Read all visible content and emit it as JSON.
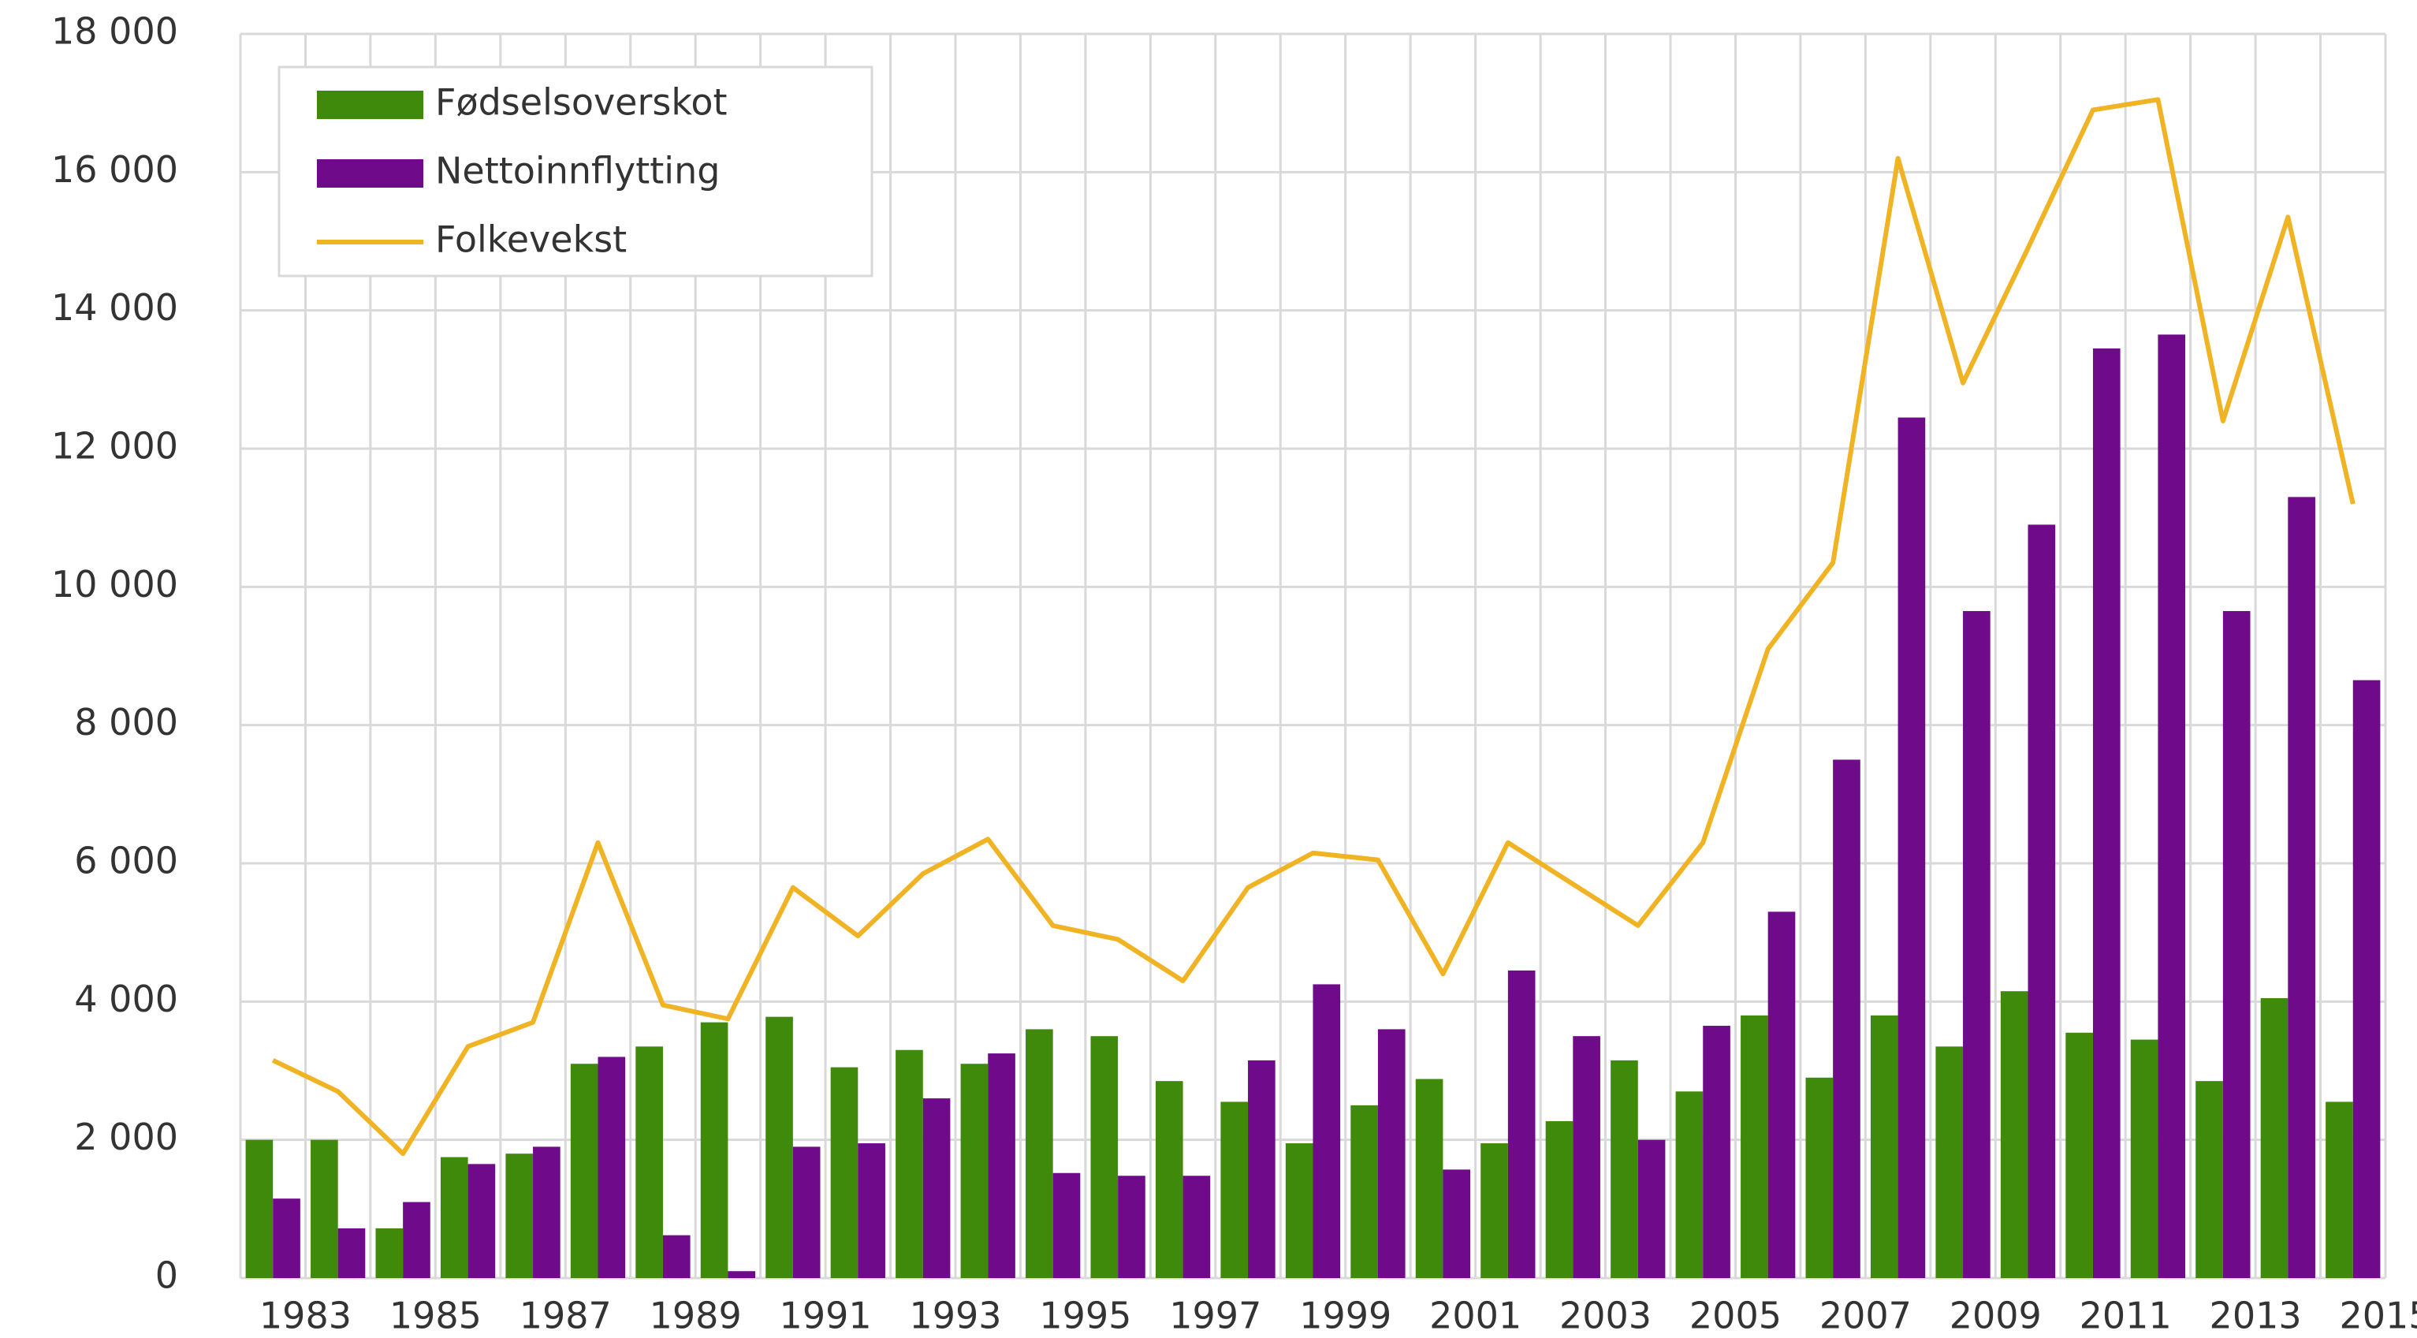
{
  "chart_data": {
    "type": "bar_line",
    "categories": [
      "1983",
      null,
      "1985",
      null,
      "1987",
      null,
      "1989",
      null,
      "1991",
      null,
      "1993",
      null,
      "1995",
      null,
      "1997",
      null,
      "1999",
      null,
      "2001",
      null,
      "2003",
      null,
      "2005",
      null,
      "2007",
      null,
      "2009",
      null,
      "2011",
      null,
      "2013",
      null,
      "2015"
    ],
    "series": [
      {
        "name": "Fødselsoverskot",
        "color": "#3f8a0a",
        "kind": "bar",
        "values": [
          2000,
          2000,
          720,
          1750,
          1800,
          3100,
          3350,
          3700,
          3780,
          3050,
          3300,
          3100,
          3600,
          3500,
          2850,
          2550,
          1950,
          2500,
          2880,
          1950,
          2270,
          3150,
          2700,
          3800,
          2900,
          3800,
          3350,
          4150,
          3550,
          3450,
          2850,
          4050,
          2550
        ]
      },
      {
        "name": "Nettoinnflytting",
        "color": "#6f0a8a",
        "kind": "bar",
        "values": [
          1150,
          720,
          1100,
          1650,
          1900,
          3200,
          620,
          100,
          1900,
          1950,
          2600,
          3250,
          1520,
          1480,
          1480,
          3150,
          4250,
          3600,
          1570,
          4450,
          3500,
          2000,
          3650,
          5300,
          7500,
          12450,
          9650,
          10900,
          13450,
          13650,
          9650,
          11300,
          8650
        ]
      },
      {
        "name": "Folkevekst",
        "color": "#f0b323",
        "kind": "line",
        "values": [
          3150,
          2700,
          1800,
          3350,
          3700,
          6300,
          3950,
          3750,
          5650,
          4950,
          5850,
          6350,
          5100,
          4900,
          4300,
          5650,
          6150,
          6050,
          4400,
          6300,
          5700,
          5100,
          6300,
          9100,
          10350,
          16200,
          12950,
          14900,
          16900,
          17050,
          12400,
          15350,
          11200
        ]
      }
    ],
    "ylim": [
      0,
      18000
    ],
    "yticks": [
      0,
      {
        "value": 2000,
        "label": "2 000"
      },
      {
        "value": 4000,
        "label": "4 000"
      },
      {
        "value": 6000,
        "label": "6 000"
      },
      {
        "value": 8000,
        "label": "8 000"
      },
      {
        "value": 10000,
        "label": "10 000"
      },
      {
        "value": 12000,
        "label": "12 000"
      },
      {
        "value": 14000,
        "label": "14 000"
      },
      {
        "value": 16000,
        "label": "16 000"
      },
      {
        "value": 18000,
        "label": "18 000"
      }
    ],
    "grid": true,
    "legend": "top-left"
  }
}
